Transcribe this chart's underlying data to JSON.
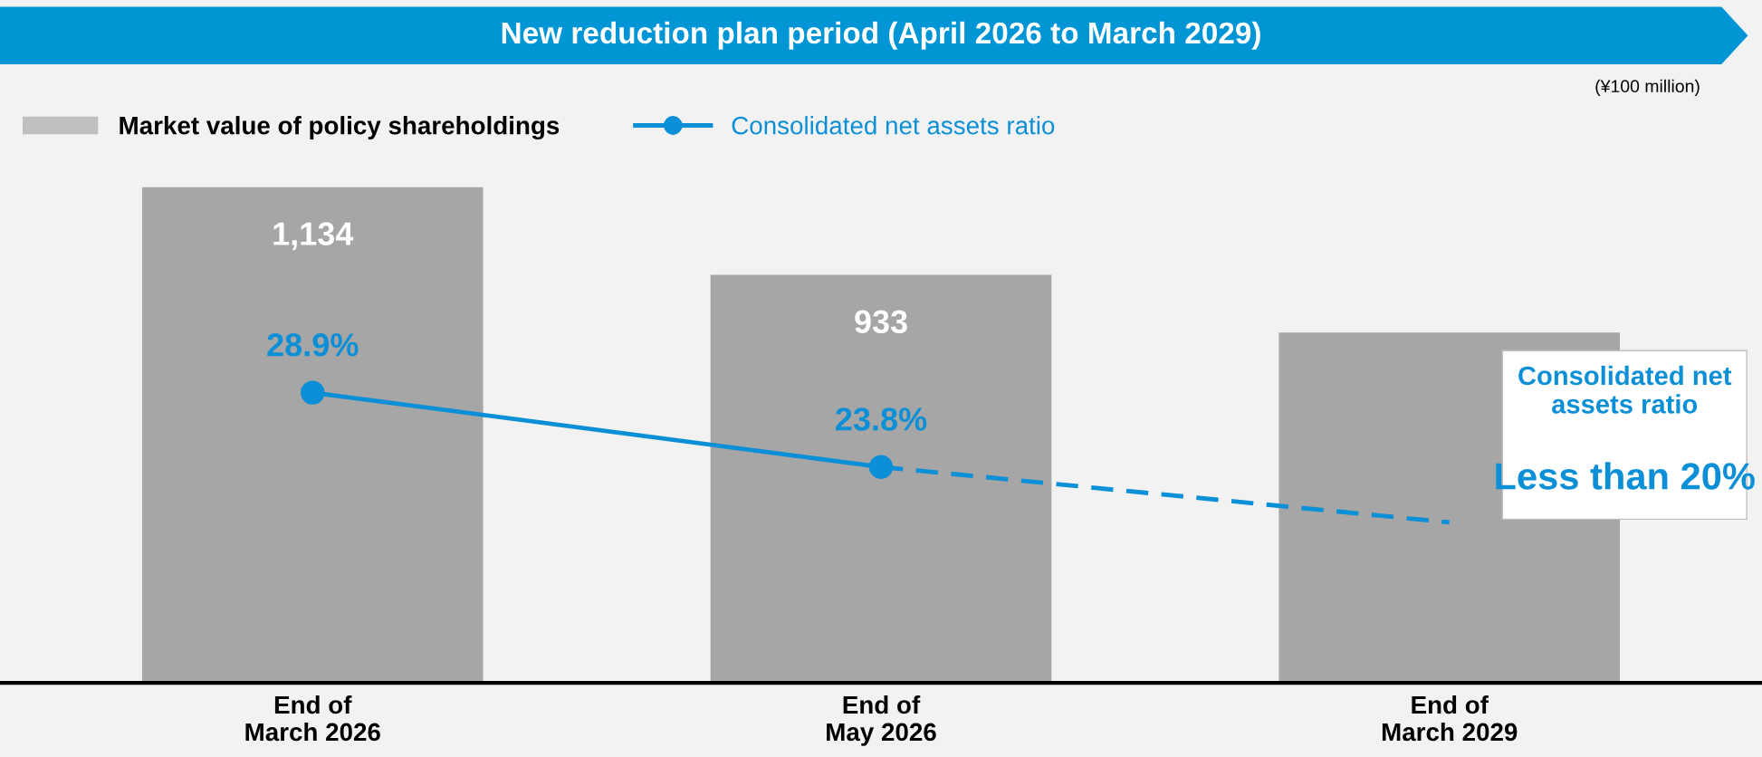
{
  "chart_data": {
    "type": "bar",
    "title": "New reduction plan period (April 2026 to March 2029)",
    "categories": [
      "End of\nMarch 2026",
      "End of\nMay 2026",
      "End of\nMarch 2029"
    ],
    "ylim": [
      0,
      1134
    ],
    "y2lim": [
      9,
      43
    ],
    "tick_labels": "x",
    "legend": "top left",
    "series": [
      {
        "name": "Market value of policy shareholdings",
        "color": "#a6a6a6",
        "values": [
          1134,
          933,
          801
        ],
        "value_labels": [
          "1,134",
          "933",
          null
        ]
      },
      {
        "name": "Consolidated net assets ratio",
        "type": "line",
        "axis": "y2",
        "color": "#0b8fd6",
        "marker": "circle",
        "line_style": "solid",
        "values": [
          28.9,
          23.8,
          null
        ],
        "value_labels": [
          "28.9%",
          "23.8%",
          null
        ]
      },
      {
        "type": "line",
        "axis": "y2",
        "color": "#0b8fd6",
        "line_style": "dashed",
        "values": [
          null,
          23.8,
          20
        ]
      }
    ],
    "annotations": [
      "(¥100 million)",
      "Consolidated net\nassets ratio",
      "Less than 20%"
    ]
  }
}
